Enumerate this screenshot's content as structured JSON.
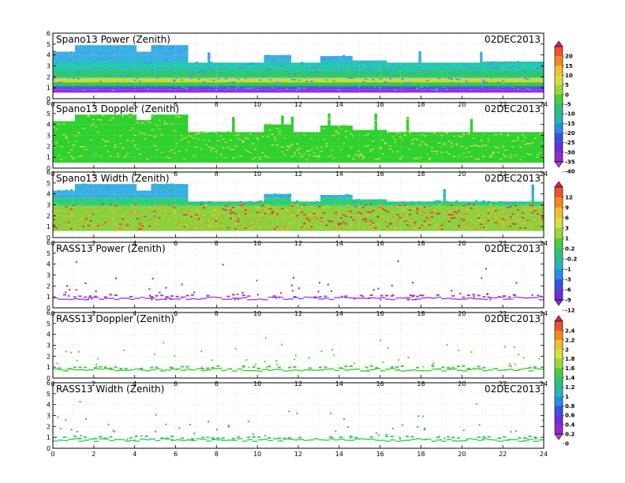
{
  "chart_data": {
    "type": "heatmap",
    "x_axis": {
      "range": [
        0,
        24
      ],
      "ticks": [
        "0",
        "2",
        "4",
        "6",
        "8",
        "10",
        "12",
        "14",
        "16",
        "18",
        "20",
        "22",
        "24"
      ]
    },
    "y_axis": {
      "range": [
        0,
        6
      ],
      "ticks": [
        "0",
        "1",
        "2",
        "3",
        "4",
        "5",
        "6"
      ]
    },
    "date": "02DEC2013",
    "panels": [
      {
        "title": "Spano13 Power (Zenith)",
        "kind": "power",
        "top_height_profile": [
          {
            "x": 0,
            "top": 4.3
          },
          {
            "x": 1.0,
            "top": 4.9
          },
          {
            "x": 4.0,
            "top": 4.3
          },
          {
            "x": 4.7,
            "top": 4.9
          },
          {
            "x": 6.5,
            "top": 3.3
          },
          {
            "x": 9.8,
            "top": 3.3
          },
          {
            "x": 10.2,
            "top": 4.0
          },
          {
            "x": 11.6,
            "top": 3.3
          },
          {
            "x": 13.0,
            "top": 3.9
          },
          {
            "x": 14.6,
            "top": 3.5
          },
          {
            "x": 16.2,
            "top": 3.3
          },
          {
            "x": 20.8,
            "top": 3.4
          },
          {
            "x": 24,
            "top": 3.3
          }
        ],
        "layers": [
          {
            "from": 0.55,
            "to": 0.85,
            "color": "#9C2CE0"
          },
          {
            "from": 0.85,
            "to": 1.15,
            "color": "#4C4CF0"
          },
          {
            "from": 1.15,
            "to": 1.5,
            "color": "#32CD32"
          },
          {
            "from": 1.5,
            "to": 1.9,
            "color": "#C8D848"
          },
          {
            "from": 1.9,
            "to": 2.6,
            "color": "#2EC86E"
          },
          {
            "from": 2.6,
            "to": 3.4,
            "color": "#22C8B0"
          },
          {
            "from": 3.4,
            "to": 6.0,
            "color": "#3AAEE6"
          }
        ],
        "colorbar": "power"
      },
      {
        "title": "Spano13 Doppler (Zenith)",
        "kind": "doppler",
        "top_height_profile": [
          {
            "x": 0,
            "top": 4.3
          },
          {
            "x": 1.0,
            "top": 4.9
          },
          {
            "x": 2.5,
            "top": 4.9
          },
          {
            "x": 4.0,
            "top": 4.4
          },
          {
            "x": 4.7,
            "top": 4.9
          },
          {
            "x": 6.5,
            "top": 3.3
          },
          {
            "x": 9.8,
            "top": 3.3
          },
          {
            "x": 10.2,
            "top": 4.0
          },
          {
            "x": 11.6,
            "top": 3.3
          },
          {
            "x": 13.0,
            "top": 3.9
          },
          {
            "x": 14.6,
            "top": 3.5
          },
          {
            "x": 16.2,
            "top": 3.3
          },
          {
            "x": 24,
            "top": 3.3
          }
        ],
        "layers": [
          {
            "from": 0.5,
            "to": 6.0,
            "color": "#2ED12E"
          }
        ],
        "colorbar": "none"
      },
      {
        "title": "Spano13 Width (Zenith)",
        "kind": "width",
        "top_height_profile": [
          {
            "x": 0,
            "top": 4.3
          },
          {
            "x": 1.0,
            "top": 4.9
          },
          {
            "x": 4.0,
            "top": 4.3
          },
          {
            "x": 4.7,
            "top": 4.9
          },
          {
            "x": 6.5,
            "top": 3.3
          },
          {
            "x": 9.8,
            "top": 3.3
          },
          {
            "x": 10.2,
            "top": 4.0
          },
          {
            "x": 11.6,
            "top": 3.3
          },
          {
            "x": 13.0,
            "top": 3.9
          },
          {
            "x": 14.6,
            "top": 3.5
          },
          {
            "x": 16.2,
            "top": 3.3
          },
          {
            "x": 24,
            "top": 3.3
          }
        ],
        "layers": [
          {
            "from": 0.6,
            "to": 2.9,
            "color": "#8AD23C"
          },
          {
            "from": 2.9,
            "to": 3.6,
            "color": "#2ED16E"
          },
          {
            "from": 3.6,
            "to": 6.0,
            "color": "#3AAEE6"
          }
        ],
        "colorbar": "width"
      },
      {
        "title": "RASS13 Power (Zenith)",
        "kind": "rass_power",
        "band_height": 0.8,
        "band_color": "#A23CDC",
        "scatter_color": "#7A2CC8",
        "colorbar": "rass_power"
      },
      {
        "title": "RASS13 Doppler (Zenith)",
        "kind": "rass_doppler",
        "band_height": 0.7,
        "band_color": "#3ACD3A",
        "scatter_color": "#66CC33",
        "colorbar": "rass_doppler"
      },
      {
        "title": "RASS13 Width (Zenith)",
        "kind": "rass_width",
        "band_height": 0.7,
        "band_color": "#2ECC60",
        "scatter_color": "#3ABF3A",
        "colorbar": "none"
      }
    ],
    "colorbars": {
      "power": {
        "labels": [
          "20",
          "15",
          "10",
          "5",
          "0",
          "-5",
          "-10",
          "-15",
          "-20",
          "-25",
          "-30",
          "-35",
          "-40"
        ],
        "colors": [
          "#E0205A",
          "#F05030",
          "#F08A20",
          "#F0C030",
          "#D8E040",
          "#9AD83C",
          "#4CCB3C",
          "#2CC080",
          "#22B8B8",
          "#2C8CE0",
          "#3A50E8",
          "#6A30D8",
          "#9A28C8",
          "#B040D8"
        ]
      },
      "width": {
        "labels": [
          "12",
          "9",
          "6",
          "3",
          "1",
          "0.2",
          "-0.2",
          "-1",
          "-3",
          "-6",
          "-9",
          "-12"
        ],
        "colors": [
          "#E0205A",
          "#F05030",
          "#F08A20",
          "#F0C030",
          "#D8E040",
          "#9AD83C",
          "#4CCB3C",
          "#2CC080",
          "#22B8B8",
          "#2C8CE0",
          "#3A50E8",
          "#6A30D8",
          "#9A28C8"
        ]
      },
      "rass": {
        "labels": [
          "2.4",
          "2.2",
          "2",
          "1.8",
          "1.6",
          "1.4",
          "1.2",
          "1",
          "0.8",
          "0.6",
          "0.4",
          "0.2",
          "0"
        ],
        "colors": [
          "#E0205A",
          "#F05030",
          "#F08A20",
          "#F0C030",
          "#D8E040",
          "#9AD83C",
          "#4CCB3C",
          "#2CC080",
          "#22B8B8",
          "#2C8CE0",
          "#3A50E8",
          "#6A30D8",
          "#9A28C8",
          "#B040D8"
        ]
      }
    }
  }
}
